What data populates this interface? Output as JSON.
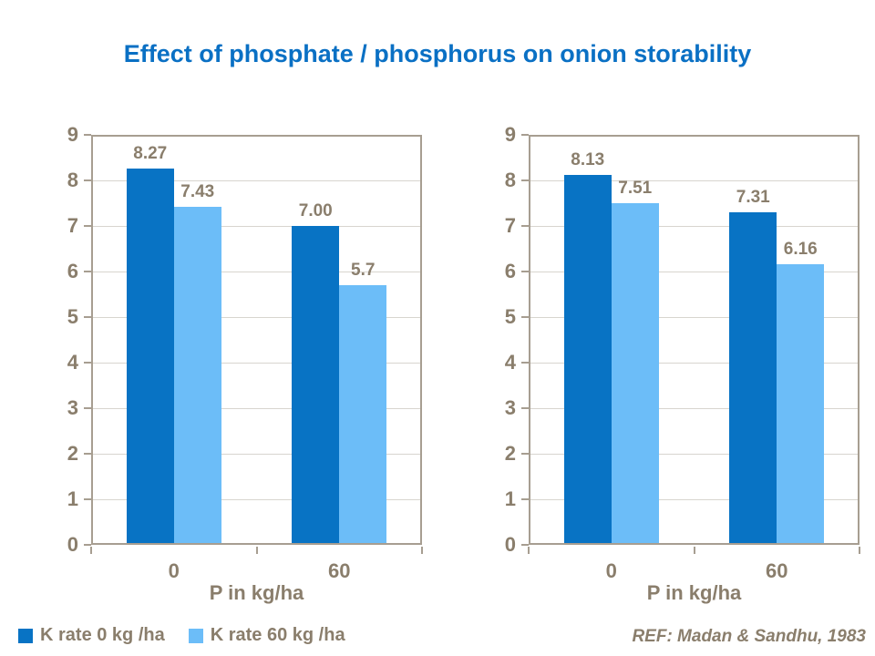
{
  "title": "Effect of phosphate / phosphorus on onion storability",
  "ref_note": "REF: Madan & Sandhu, 1983",
  "colors": {
    "title": "#0a70c4",
    "chart_text": "#8a7e6c",
    "axis_line": "#a79e91",
    "gridline": "#d8d5cf",
    "background": "#ffffff",
    "series_dark_blue": "#0873c4",
    "series_light_blue": "#6cbdf8"
  },
  "legend": {
    "items": [
      {
        "label": "K rate 0 kg /ha",
        "color": "#0873c4"
      },
      {
        "label": "K rate 60 kg /ha",
        "color": "#6cbdf8"
      }
    ]
  },
  "chart_data": [
    {
      "type": "bar",
      "position": "left",
      "categories": [
        "0",
        "60"
      ],
      "xlabel": "P in kg/ha",
      "ylabel": "",
      "ylim": [
        0,
        9
      ],
      "yticks": [
        0,
        1,
        2,
        3,
        4,
        5,
        6,
        7,
        8,
        9
      ],
      "grid": true,
      "legend_position": "bottom-left",
      "series": [
        {
          "name": "K rate 0 kg /ha",
          "color": "#0873c4",
          "values": [
            8.27,
            7.0
          ],
          "labels": [
            "8.27",
            "7.00"
          ]
        },
        {
          "name": "K rate 60 kg /ha",
          "color": "#6cbdf8",
          "values": [
            7.43,
            5.7
          ],
          "labels": [
            "7.43",
            "5.7"
          ]
        }
      ]
    },
    {
      "type": "bar",
      "position": "right",
      "categories": [
        "0",
        "60"
      ],
      "xlabel": "P in kg/ha",
      "ylabel": "",
      "ylim": [
        0,
        9
      ],
      "yticks": [
        0,
        1,
        2,
        3,
        4,
        5,
        6,
        7,
        8,
        9
      ],
      "grid": true,
      "legend_position": "bottom-left",
      "series": [
        {
          "name": "K rate 0 kg /ha",
          "color": "#0873c4",
          "values": [
            8.13,
            7.31
          ],
          "labels": [
            "8.13",
            "7.31"
          ]
        },
        {
          "name": "K rate 60 kg /ha",
          "color": "#6cbdf8",
          "values": [
            7.51,
            6.16
          ],
          "labels": [
            "7.51",
            "6.16"
          ]
        }
      ]
    }
  ]
}
